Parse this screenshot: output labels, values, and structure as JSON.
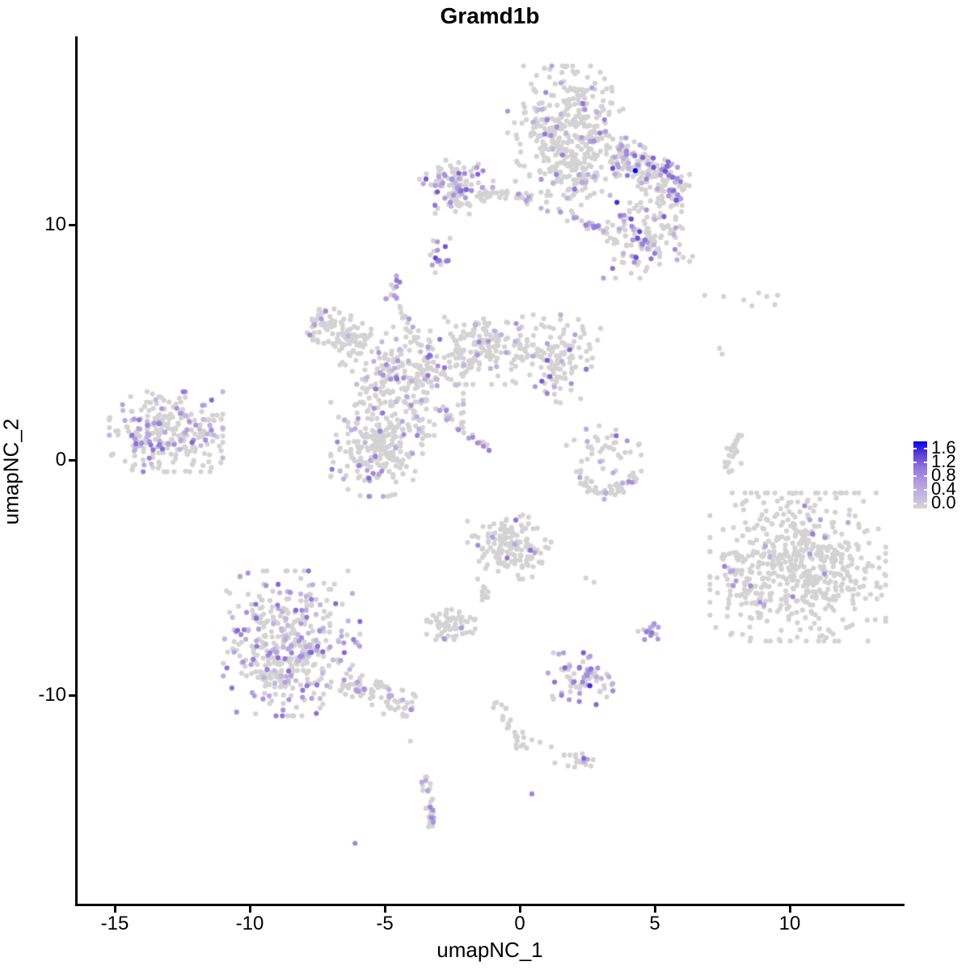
{
  "page": {
    "background": "#FFFFFF"
  },
  "chart_data": {
    "type": "scatter",
    "title": "Gramd1b",
    "xlabel": "umapNC_1",
    "ylabel": "umapNC_2",
    "xlim": [
      -16.4,
      14.2
    ],
    "ylim": [
      -18.9,
      18.0
    ],
    "grid": false,
    "x_ticks": [
      -15,
      -10,
      -5,
      0,
      5,
      10
    ],
    "x_tick_labels": [
      "-15",
      "-10",
      "-5",
      "0",
      "5",
      "10"
    ],
    "y_ticks": [
      10,
      0,
      -10
    ],
    "y_tick_labels": [
      "10",
      "0",
      "-10"
    ],
    "point_radius_px": 3.1,
    "colorbar": {
      "position": "right",
      "tick_values": [
        1.6,
        1.2,
        0.8,
        0.4,
        0.0
      ],
      "tick_labels": [
        "1.6",
        "1.2",
        "0.8",
        "0.4",
        "0.0"
      ],
      "low_color": "#D3D3D3",
      "high_color": "#0B00E6",
      "value_max": 1.75
    },
    "color_stops": [
      [
        0,
        "#D3D3D3"
      ],
      [
        0.25,
        "#BEB1E3"
      ],
      [
        0.5,
        "#A58BDE"
      ],
      [
        0.72,
        "#7E5FD6"
      ],
      [
        0.9,
        "#3B1BD4"
      ],
      [
        1,
        "#0B00E6"
      ]
    ],
    "clusters": [
      {
        "name": "top-main",
        "shape": "gauss",
        "c": [
          1.75,
          14.0
        ],
        "sd": [
          1.0,
          1.25
        ],
        "clamp": 2.2,
        "n": 360,
        "frac": 0.09,
        "v": [
          0.3,
          1.2
        ]
      },
      {
        "name": "top-main-lower",
        "shape": "gauss",
        "c": [
          2.0,
          11.9
        ],
        "sd": [
          0.55,
          0.6
        ],
        "clamp": 2.2,
        "n": 60,
        "frac": 0.15,
        "v": [
          0.35,
          1.2
        ]
      },
      {
        "name": "top-left-wing",
        "shape": "gauss",
        "c": [
          -2.35,
          11.6
        ],
        "sd": [
          0.62,
          0.52
        ],
        "clamp": 2.2,
        "n": 115,
        "frac": 0.38,
        "v": [
          0.4,
          1.3
        ]
      },
      {
        "name": "bridge",
        "shape": "line",
        "a": [
          -1.5,
          11.35
        ],
        "b": [
          0.45,
          11.15
        ],
        "w": 0.14,
        "n": 34,
        "frac": 0.12,
        "v": [
          0.4,
          1.0
        ]
      },
      {
        "name": "top-right-arm",
        "shape": "line",
        "a": [
          3.45,
          13.1
        ],
        "b": [
          6.1,
          11.3
        ],
        "w": 0.4,
        "n": 185,
        "frac": 0.3,
        "v": [
          0.4,
          1.4
        ]
      },
      {
        "name": "trail-to-descent",
        "shape": "line",
        "a": [
          0.7,
          10.85
        ],
        "b": [
          3.3,
          9.7
        ],
        "w": 0.12,
        "n": 24,
        "frac": 0.45,
        "v": [
          0.4,
          1.1
        ]
      },
      {
        "name": "right-descent",
        "shape": "gauss",
        "c": [
          4.75,
          9.6
        ],
        "sd": [
          0.75,
          0.85
        ],
        "clamp": 2.2,
        "n": 150,
        "frac": 0.28,
        "v": [
          0.4,
          1.4
        ]
      },
      {
        "name": "teardrop",
        "shape": "gauss",
        "c": [
          -2.95,
          8.8
        ],
        "sd": [
          0.22,
          0.42
        ],
        "clamp": 2.0,
        "n": 17,
        "frac": 0.5,
        "v": [
          0.5,
          1.4
        ]
      },
      {
        "name": "tiny-blob",
        "shape": "gauss",
        "c": [
          -4.65,
          7.3
        ],
        "sd": [
          0.2,
          0.3
        ],
        "clamp": 2.0,
        "n": 13,
        "frac": 0.6,
        "v": [
          0.5,
          1.2
        ]
      },
      {
        "name": "chain-tiny",
        "shape": "line",
        "a": [
          -4.45,
          6.55
        ],
        "b": [
          -3.95,
          4.95
        ],
        "w": 0.1,
        "n": 11,
        "frac": 0.2,
        "v": [
          0.5,
          1.0
        ]
      },
      {
        "name": "center-left-arm",
        "shape": "line",
        "a": [
          -7.75,
          5.9
        ],
        "b": [
          -5.7,
          4.95
        ],
        "w": 0.42,
        "n": 100,
        "frac": 0.07,
        "v": [
          0.35,
          1.0
        ]
      },
      {
        "name": "center-core",
        "shape": "gauss",
        "c": [
          -4.4,
          3.35
        ],
        "sd": [
          1.05,
          1.05
        ],
        "clamp": 2.2,
        "n": 260,
        "frac": 0.14,
        "v": [
          0.3,
          1.2
        ]
      },
      {
        "name": "center-right-arm",
        "shape": "gauss",
        "c": [
          -1.3,
          4.65
        ],
        "sd": [
          1.05,
          0.72
        ],
        "clamp": 2.0,
        "n": 185,
        "frac": 0.07,
        "v": [
          0.35,
          1.1
        ]
      },
      {
        "name": "center-right-end",
        "shape": "gauss",
        "c": [
          1.5,
          4.3
        ],
        "sd": [
          0.68,
          0.85
        ],
        "clamp": 2.2,
        "n": 115,
        "frac": 0.13,
        "v": [
          0.4,
          1.3
        ]
      },
      {
        "name": "center-lower-blob",
        "shape": "gauss",
        "c": [
          -5.3,
          0.45
        ],
        "sd": [
          0.85,
          1.0
        ],
        "clamp": 2.0,
        "n": 225,
        "frac": 0.1,
        "v": [
          0.35,
          1.2
        ]
      },
      {
        "name": "center-streak",
        "shape": "line",
        "a": [
          -2.95,
          2.15
        ],
        "b": [
          -1.15,
          0.35
        ],
        "w": 0.09,
        "n": 26,
        "frac": 0.5,
        "v": [
          0.4,
          1.2
        ]
      },
      {
        "name": "left-cluster",
        "shape": "gauss",
        "c": [
          -13.1,
          1.2
        ],
        "sd": [
          1.05,
          0.85
        ],
        "clamp": 2.0,
        "n": 265,
        "frac": 0.25,
        "v": [
          0.3,
          1.2
        ]
      },
      {
        "name": "arc-upper",
        "shape": "gauss",
        "c": [
          3.0,
          0.55
        ],
        "sd": [
          0.75,
          0.55
        ],
        "clamp": 2.0,
        "n": 42,
        "frac": 0.18,
        "v": [
          0.4,
          1.2
        ]
      },
      {
        "name": "arc-bottom",
        "shape": "arc",
        "a": [
          2.05,
          -0.55
        ],
        "b": [
          4.35,
          -0.65
        ],
        "sag": -0.75,
        "w": 0.16,
        "n": 48,
        "frac": 0.1,
        "v": [
          0.4,
          1.1
        ]
      },
      {
        "name": "comma-streak",
        "shape": "arc",
        "a": [
          7.75,
          -0.68
        ],
        "b": [
          8.15,
          1.1
        ],
        "sag": 0.18,
        "w": 0.08,
        "n": 26,
        "frac": 0.0,
        "v": [
          0.4,
          1.0
        ]
      },
      {
        "name": "bottom-left-main",
        "shape": "gauss",
        "c": [
          -8.45,
          -7.8
        ],
        "sd": [
          1.15,
          1.4
        ],
        "clamp": 2.2,
        "n": 430,
        "frac": 0.32,
        "v": [
          0.3,
          1.2
        ]
      },
      {
        "name": "bottom-left-tail",
        "shape": "line",
        "a": [
          -6.6,
          -9.5
        ],
        "b": [
          -3.95,
          -10.6
        ],
        "w": 0.3,
        "n": 80,
        "frac": 0.15,
        "v": [
          0.4,
          1.1
        ]
      },
      {
        "name": "mid-bottom",
        "shape": "gauss",
        "c": [
          -0.35,
          -3.7
        ],
        "sd": [
          0.72,
          0.62
        ],
        "clamp": 2.2,
        "n": 150,
        "frac": 0.04,
        "v": [
          0.5,
          1.2
        ]
      },
      {
        "name": "mid-bottom-arm",
        "shape": "line",
        "a": [
          -1.4,
          -4.9
        ],
        "b": [
          -1.25,
          -6.0
        ],
        "w": 0.1,
        "n": 11,
        "frac": 0.1,
        "v": [
          0.5,
          1.0
        ]
      },
      {
        "name": "gray-blob",
        "shape": "gauss",
        "c": [
          -2.55,
          -7.0
        ],
        "sd": [
          0.45,
          0.32
        ],
        "clamp": 2.0,
        "n": 65,
        "frac": 0.02,
        "v": [
          0.4,
          0.8
        ]
      },
      {
        "name": "purple-small",
        "shape": "gauss",
        "c": [
          4.82,
          -7.25
        ],
        "sd": [
          0.22,
          0.28
        ],
        "clamp": 2.0,
        "n": 16,
        "frac": 0.75,
        "v": [
          0.5,
          1.3
        ]
      },
      {
        "name": "bottom-mid-purple",
        "shape": "gauss",
        "c": [
          2.25,
          -9.3
        ],
        "sd": [
          0.6,
          0.55
        ],
        "clamp": 2.0,
        "n": 72,
        "frac": 0.45,
        "v": [
          0.4,
          1.3
        ]
      },
      {
        "name": "chain-bottom",
        "shape": "arc",
        "a": [
          -0.85,
          -10.3
        ],
        "b": [
          0.05,
          -12.35
        ],
        "sag": 0.15,
        "w": 0.12,
        "n": 24,
        "frac": 0.0,
        "v": [
          0.4,
          1.0
        ]
      },
      {
        "name": "bottom-right-blob",
        "shape": "gauss",
        "c": [
          2.1,
          -12.75
        ],
        "sd": [
          0.4,
          0.22
        ],
        "clamp": 2.0,
        "n": 18,
        "frac": 0.05,
        "v": [
          0.5,
          1.0
        ]
      },
      {
        "name": "vertical-streak",
        "shape": "arc",
        "a": [
          -3.55,
          -13.45
        ],
        "b": [
          -3.3,
          -15.6
        ],
        "sag": 0.12,
        "w": 0.1,
        "n": 30,
        "frac": 0.25,
        "v": [
          0.5,
          1.0
        ]
      },
      {
        "name": "right-big",
        "shape": "gauss",
        "c": [
          10.3,
          -4.55
        ],
        "sd": [
          1.55,
          1.5
        ],
        "clamp": 2.1,
        "n": 560,
        "frac": 0.015,
        "v": [
          0.4,
          1.0
        ]
      },
      {
        "name": "right-satellite",
        "shape": "gauss",
        "c": [
          7.9,
          -4.85
        ],
        "sd": [
          0.18,
          0.25
        ],
        "clamp": 2.0,
        "n": 14,
        "frac": 0.35,
        "v": [
          0.5,
          1.0
        ]
      },
      {
        "name": "right-big-fringe",
        "shape": "gauss",
        "c": [
          8.6,
          -5.3
        ],
        "sd": [
          0.5,
          0.7
        ],
        "clamp": 2.0,
        "n": 25,
        "frac": 0.1,
        "v": [
          0.4,
          0.9
        ]
      }
    ],
    "extra_points": [
      [
        4.28,
        12.3,
        1.75
      ],
      [
        3.6,
        10.95,
        1.5
      ],
      [
        2.6,
        -9.6,
        1.5
      ],
      [
        2.37,
        -12.68,
        1.2
      ],
      [
        -6.1,
        -16.3,
        0.9
      ],
      [
        0.45,
        -14.2,
        0.9
      ],
      [
        -2.8,
        -7.6,
        0.8
      ],
      [
        10.55,
        -1.95,
        0.9
      ],
      [
        11.3,
        -3.3,
        0.75
      ],
      [
        10.75,
        -4.0,
        0.7
      ],
      [
        8.55,
        -5.35,
        0.85
      ],
      [
        8.9,
        -6.05,
        0.8
      ],
      [
        -7.35,
        6.0,
        0.7
      ],
      [
        -7.6,
        5.75,
        0.6
      ],
      [
        -4.1,
        6.0,
        0.7
      ],
      [
        6.85,
        7.0,
        0
      ],
      [
        7.55,
        6.95,
        0
      ],
      [
        8.3,
        6.8,
        0
      ],
      [
        8.85,
        7.1,
        0
      ],
      [
        9.15,
        6.95,
        0
      ],
      [
        9.45,
        6.6,
        0
      ],
      [
        9.55,
        7.0,
        0
      ],
      [
        8.6,
        6.55,
        0
      ],
      [
        7.4,
        4.75,
        0
      ],
      [
        7.5,
        4.5,
        0
      ],
      [
        -4.05,
        -11.95,
        0
      ],
      [
        2.45,
        -5.02,
        0
      ],
      [
        2.75,
        -5.2,
        0
      ],
      [
        0.15,
        -11.8,
        0
      ],
      [
        0.45,
        -11.9,
        0
      ],
      [
        0.75,
        -12.0,
        0
      ],
      [
        1.17,
        -12.2,
        0
      ],
      [
        8.05,
        0.35,
        0
      ],
      [
        8.2,
        -0.15,
        0
      ]
    ]
  }
}
